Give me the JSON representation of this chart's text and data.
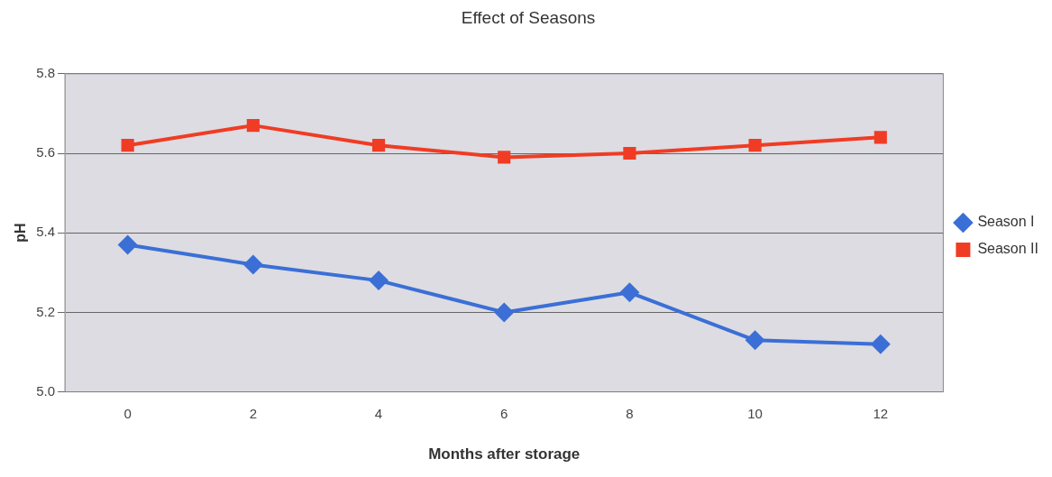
{
  "chart_data": {
    "type": "line",
    "title": "Effect of Seasons",
    "xlabel": "Months after storage",
    "ylabel": "pH",
    "categories": [
      "0",
      "2",
      "4",
      "6",
      "8",
      "10",
      "12"
    ],
    "series": [
      {
        "name": "Season I",
        "color": "#3b6fd6",
        "marker": "diamond",
        "values": [
          5.37,
          5.32,
          5.28,
          5.2,
          5.25,
          5.13,
          5.12
        ]
      },
      {
        "name": "Season II",
        "color": "#f03c24",
        "marker": "square",
        "values": [
          5.62,
          5.67,
          5.62,
          5.59,
          5.6,
          5.62,
          5.64
        ]
      }
    ],
    "ylim": [
      5.0,
      5.8
    ],
    "yticks": [
      {
        "value": 5.0,
        "label": "5.0"
      },
      {
        "value": 5.2,
        "label": "5.2"
      },
      {
        "value": 5.4,
        "label": "5.4"
      },
      {
        "value": 5.6,
        "label": "5.6"
      },
      {
        "value": 5.8,
        "label": "5.8"
      }
    ],
    "grid": "y",
    "legend": "right"
  }
}
